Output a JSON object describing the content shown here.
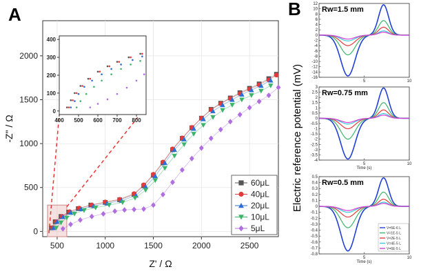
{
  "panel_a_label": "A",
  "panel_b_label": "B",
  "chart_data": [
    {
      "type": "scatter",
      "id": "nyquist-main",
      "xlabel": "Z' / Ω",
      "ylabel": "-Z\" / Ω",
      "xlim": [
        350,
        2800
      ],
      "ylim": [
        -60,
        2400
      ],
      "xticks": [
        500,
        1000,
        1500,
        2000,
        2500
      ],
      "yticks": [
        0,
        500,
        1000,
        1500,
        2000
      ],
      "legend_position": "bottom-right",
      "series": [
        {
          "name": "60μL",
          "color": "#555555",
          "marker": "square",
          "points": [
            [
              440,
              40
            ],
            [
              480,
              110
            ],
            [
              540,
              170
            ],
            [
              620,
              220
            ],
            [
              720,
              260
            ],
            [
              850,
              300
            ],
            [
              1000,
              330
            ],
            [
              1150,
              360
            ],
            [
              1300,
              420
            ],
            [
              1400,
              520
            ],
            [
              1500,
              640
            ],
            [
              1600,
              780
            ],
            [
              1700,
              930
            ],
            [
              1800,
              1060
            ],
            [
              1900,
              1180
            ],
            [
              2000,
              1290
            ],
            [
              2100,
              1390
            ],
            [
              2200,
              1460
            ],
            [
              2300,
              1520
            ],
            [
              2400,
              1580
            ],
            [
              2500,
              1630
            ],
            [
              2600,
              1680
            ],
            [
              2700,
              1740
            ],
            [
              2780,
              1790
            ]
          ]
        },
        {
          "name": "40μL",
          "color": "#e23b3b",
          "marker": "circle",
          "points": [
            [
              450,
              40
            ],
            [
              490,
              110
            ],
            [
              550,
              170
            ],
            [
              630,
              225
            ],
            [
              730,
              265
            ],
            [
              860,
              300
            ],
            [
              1000,
              335
            ],
            [
              1150,
              365
            ],
            [
              1300,
              430
            ],
            [
              1400,
              530
            ],
            [
              1500,
              650
            ],
            [
              1600,
              790
            ],
            [
              1700,
              940
            ],
            [
              1800,
              1065
            ],
            [
              1900,
              1185
            ],
            [
              2000,
              1290
            ],
            [
              2100,
              1385
            ],
            [
              2200,
              1455
            ],
            [
              2300,
              1515
            ],
            [
              2400,
              1570
            ],
            [
              2500,
              1620
            ],
            [
              2600,
              1670
            ],
            [
              2700,
              1725
            ],
            [
              2780,
              1780
            ]
          ]
        },
        {
          "name": "20μL",
          "color": "#2b6fd6",
          "marker": "triangle-up",
          "points": [
            [
              460,
              40
            ],
            [
              500,
              110
            ],
            [
              560,
              165
            ],
            [
              640,
              215
            ],
            [
              750,
              255
            ],
            [
              880,
              290
            ],
            [
              1020,
              320
            ],
            [
              1170,
              350
            ],
            [
              1320,
              410
            ],
            [
              1420,
              510
            ],
            [
              1520,
              630
            ],
            [
              1620,
              780
            ],
            [
              1720,
              930
            ],
            [
              1820,
              1050
            ],
            [
              1920,
              1170
            ],
            [
              2020,
              1280
            ],
            [
              2120,
              1370
            ],
            [
              2220,
              1440
            ],
            [
              2320,
              1500
            ],
            [
              2420,
              1560
            ],
            [
              2520,
              1610
            ],
            [
              2620,
              1660
            ],
            [
              2720,
              1720
            ]
          ]
        },
        {
          "name": "10μL",
          "color": "#3bb56a",
          "marker": "triangle-down",
          "points": [
            [
              490,
              40
            ],
            [
              540,
              100
            ],
            [
              600,
              155
            ],
            [
              680,
              200
            ],
            [
              780,
              240
            ],
            [
              900,
              270
            ],
            [
              1040,
              300
            ],
            [
              1180,
              330
            ],
            [
              1310,
              380
            ],
            [
              1420,
              470
            ],
            [
              1520,
              580
            ],
            [
              1620,
              720
            ],
            [
              1720,
              860
            ],
            [
              1820,
              990
            ],
            [
              1920,
              1110
            ],
            [
              2020,
              1210
            ],
            [
              2120,
              1300
            ],
            [
              2220,
              1380
            ],
            [
              2320,
              1440
            ],
            [
              2420,
              1500
            ],
            [
              2520,
              1550
            ],
            [
              2620,
              1600
            ],
            [
              2720,
              1660
            ]
          ]
        },
        {
          "name": "5μL",
          "color": "#b06ee0",
          "marker": "diamond",
          "points": [
            [
              560,
              30
            ],
            [
              640,
              80
            ],
            [
              740,
              130
            ],
            [
              860,
              170
            ],
            [
              980,
              200
            ],
            [
              1100,
              230
            ],
            [
              1200,
              245
            ],
            [
              1300,
              250
            ],
            [
              1400,
              255
            ],
            [
              1500,
              300
            ],
            [
              1600,
              420
            ],
            [
              1700,
              560
            ],
            [
              1800,
              700
            ],
            [
              1900,
              830
            ],
            [
              2000,
              950
            ],
            [
              2100,
              1060
            ],
            [
              2200,
              1160
            ],
            [
              2300,
              1250
            ],
            [
              2400,
              1330
            ],
            [
              2500,
              1410
            ],
            [
              2600,
              1480
            ],
            [
              2700,
              1550
            ],
            [
              2800,
              1640
            ]
          ]
        }
      ],
      "legend": [
        "60μL",
        "40μL",
        "20μL",
        "10μL",
        "5μL"
      ]
    },
    {
      "type": "scatter",
      "id": "nyquist-inset",
      "xlim": [
        400,
        850
      ],
      "ylim": [
        -20,
        420
      ],
      "xticks": [
        400,
        500,
        600,
        700,
        800
      ],
      "yticks": [
        0,
        100,
        200,
        300,
        400
      ],
      "series": [
        {
          "name": "60μL",
          "color": "#555555",
          "points": [
            [
              440,
              20
            ],
            [
              460,
              60
            ],
            [
              480,
              100
            ],
            [
              510,
              140
            ],
            [
              550,
              180
            ],
            [
              600,
              220
            ],
            [
              650,
              250
            ],
            [
              700,
              275
            ],
            [
              760,
              300
            ],
            [
              820,
              320
            ]
          ]
        },
        {
          "name": "40μL",
          "color": "#e23b3b",
          "points": [
            [
              450,
              20
            ],
            [
              470,
              60
            ],
            [
              490,
              100
            ],
            [
              520,
              140
            ],
            [
              560,
              180
            ],
            [
              610,
              220
            ],
            [
              660,
              250
            ],
            [
              710,
              275
            ],
            [
              770,
              300
            ],
            [
              830,
              320
            ]
          ]
        },
        {
          "name": "20μL",
          "color": "#2b6fd6",
          "points": [
            [
              460,
              20
            ],
            [
              480,
              55
            ],
            [
              500,
              95
            ],
            [
              530,
              135
            ],
            [
              570,
              170
            ],
            [
              620,
              205
            ],
            [
              670,
              235
            ],
            [
              720,
              260
            ],
            [
              780,
              285
            ],
            [
              830,
              305
            ]
          ]
        },
        {
          "name": "10μL",
          "color": "#3bb56a",
          "points": [
            [
              490,
              20
            ],
            [
              510,
              55
            ],
            [
              540,
              95
            ],
            [
              580,
              135
            ],
            [
              620,
              170
            ],
            [
              670,
              205
            ],
            [
              720,
              235
            ],
            [
              770,
              260
            ],
            [
              820,
              280
            ]
          ]
        },
        {
          "name": "5μL",
          "color": "#b06ee0",
          "points": [
            [
              560,
              20
            ],
            [
              600,
              40
            ],
            [
              650,
              65
            ],
            [
              700,
              95
            ],
            [
              750,
              130
            ],
            [
              800,
              170
            ],
            [
              840,
              205
            ]
          ]
        }
      ]
    },
    {
      "type": "line",
      "id": "potential-rw15",
      "title": "Rw=1.5 mm",
      "ylabel": "Electric reference potential (mV)",
      "xlim": [
        0,
        10
      ],
      "ylim": [
        -16,
        12
      ],
      "xticks": [
        5,
        10
      ],
      "yticks": [
        12,
        10,
        8,
        6,
        4,
        2,
        0,
        -2,
        -4,
        -6,
        -8,
        -10,
        -12,
        -14,
        -16
      ],
      "series": [
        {
          "name": "V=5E-6 L",
          "color": "#1f3fd6",
          "neg": -15.5,
          "pos": 11.5
        },
        {
          "name": "V=1E-5 L",
          "color": "#3bb56a",
          "neg": -7.5,
          "pos": 5.5
        },
        {
          "name": "V=2E-5 L",
          "color": "#e23b3b",
          "neg": -4.0,
          "pos": 3.0
        },
        {
          "name": "V=4E-5 L",
          "color": "#39c9d6",
          "neg": -2.2,
          "pos": 1.6
        },
        {
          "name": "V=6E-5 L",
          "color": "#d63bd6",
          "neg": -1.5,
          "pos": 1.1
        }
      ]
    },
    {
      "type": "line",
      "id": "potential-rw075",
      "title": "Rw=0.75 mm",
      "xlabel": "Time (s)",
      "xlim": [
        0,
        10
      ],
      "ylim": [
        -4,
        3
      ],
      "xticks": [
        5,
        10
      ],
      "yticks": [
        3,
        2.5,
        2,
        1.5,
        1,
        0.5,
        0,
        -0.5,
        -1,
        -1.5,
        -2,
        -2.5,
        -3,
        -3.5,
        -4
      ],
      "series": [
        {
          "name": "V=5E-6 L",
          "color": "#1f3fd6",
          "neg": -3.9,
          "pos": 2.9
        },
        {
          "name": "V=1E-5 L",
          "color": "#3bb56a",
          "neg": -2.0,
          "pos": 1.5
        },
        {
          "name": "V=2E-5 L",
          "color": "#e23b3b",
          "neg": -1.0,
          "pos": 0.8
        },
        {
          "name": "V=4E-5 L",
          "color": "#39c9d6",
          "neg": -0.55,
          "pos": 0.45
        },
        {
          "name": "V=6E-5 L",
          "color": "#d63bd6",
          "neg": -0.4,
          "pos": 0.3
        }
      ]
    },
    {
      "type": "line",
      "id": "potential-rw05",
      "title": "Rw=0.5 mm",
      "xlabel": "Time (s)",
      "xlim": [
        0,
        10
      ],
      "ylim": [
        -0.8,
        0.5
      ],
      "xticks": [
        5,
        10
      ],
      "yticks": [
        0.5,
        0.4,
        0.3,
        0.2,
        0.1,
        0,
        -0.1,
        -0.2,
        -0.3,
        -0.4,
        -0.5,
        -0.6,
        -0.7,
        -0.8
      ],
      "series": [
        {
          "name": "V=5E-6 L",
          "color": "#1f3fd6",
          "neg": -0.75,
          "pos": 0.48
        },
        {
          "name": "V=1E-5 L",
          "color": "#3bb56a",
          "neg": -0.36,
          "pos": 0.24
        },
        {
          "name": "V=2E-5 L",
          "color": "#e23b3b",
          "neg": -0.18,
          "pos": 0.12
        },
        {
          "name": "V=4E-5 L",
          "color": "#39c9d6",
          "neg": -0.1,
          "pos": 0.07
        },
        {
          "name": "V=6E-5 L",
          "color": "#d63bd6",
          "neg": -0.07,
          "pos": 0.05
        }
      ],
      "legend": [
        "V=5E-6 L",
        "V=1E-5 L",
        "V=2E-5 L",
        "V=4E-5 L",
        "V=6E-5 L"
      ],
      "legend_position": "bottom-right"
    }
  ]
}
